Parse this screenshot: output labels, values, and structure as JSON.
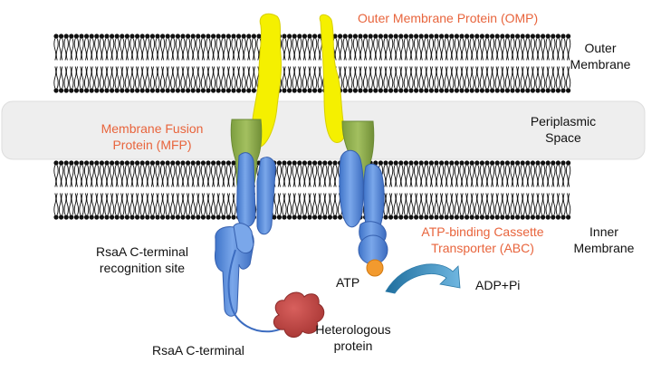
{
  "colors": {
    "omp": "#f5f000",
    "mfp": "#8aab4a",
    "transporter": "#5b8fdc",
    "atp": "#f29a2e",
    "heterologous_protein": "#c44a48",
    "arrow": "#3f8fc4",
    "label_accent": "#e8643c",
    "periplasm_band": "#eeeeee"
  },
  "icons": [
    "lipid-bilayer",
    "outer-membrane-protein-channel",
    "membrane-fusion-protein",
    "abc-transporter",
    "atp-ball",
    "hydrolysis-arrow",
    "heterologous-protein-blob"
  ],
  "labels": {
    "omp": "Outer Membrane Protein (OMP)",
    "outer_membrane": [
      "Outer",
      "Membrane"
    ],
    "periplasmic_space": [
      "Periplasmic",
      "Space"
    ],
    "mfp": [
      "Membrane Fusion",
      "Protein (MFP)"
    ],
    "abc": [
      "ATP-binding Cassette",
      "Transporter (ABC)"
    ],
    "inner_membrane": [
      "Inner",
      "Membrane"
    ],
    "recognition_site": [
      "RsaA C-terminal",
      "recognition site"
    ],
    "atp": "ATP",
    "adp": "ADP+Pi",
    "heterologous": [
      "Heterologous",
      "protein"
    ],
    "c_terminal": "RsaA C-terminal"
  }
}
